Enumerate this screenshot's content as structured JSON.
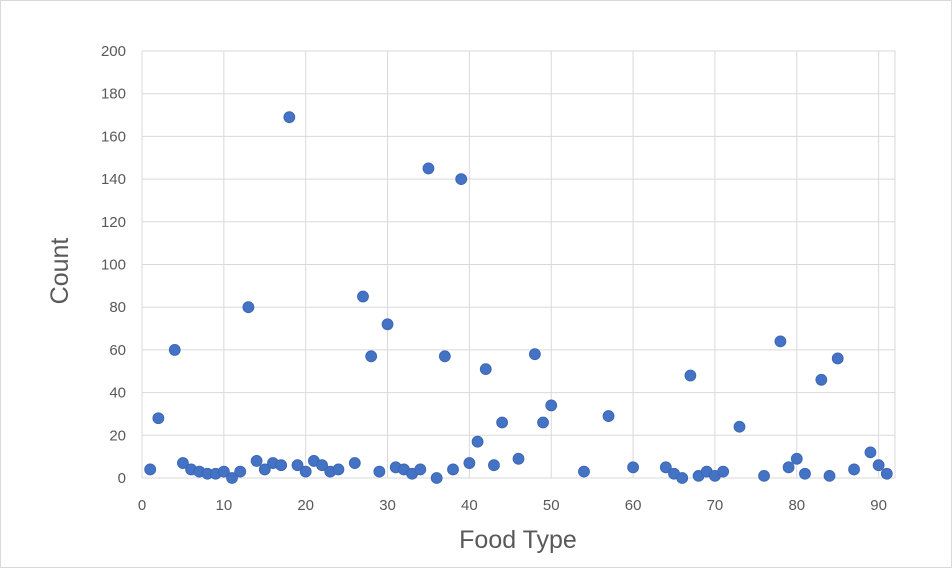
{
  "chart_data": {
    "type": "scatter",
    "title": "",
    "xlabel": "Food Type",
    "ylabel": "Count",
    "xlim": [
      0,
      92
    ],
    "ylim": [
      0,
      200
    ],
    "xticks": [
      0,
      10,
      20,
      30,
      40,
      50,
      60,
      70,
      80,
      90
    ],
    "yticks": [
      0,
      20,
      40,
      60,
      80,
      100,
      120,
      140,
      160,
      180,
      200
    ],
    "grid": true,
    "legend": "none",
    "marker_color": "#4472C4",
    "series": [
      {
        "points": [
          [
            1,
            4
          ],
          [
            2,
            28
          ],
          [
            4,
            60
          ],
          [
            5,
            7
          ],
          [
            6,
            4
          ],
          [
            7,
            3
          ],
          [
            8,
            2
          ],
          [
            9,
            2
          ],
          [
            10,
            3
          ],
          [
            11,
            0
          ],
          [
            12,
            3
          ],
          [
            13,
            80
          ],
          [
            14,
            8
          ],
          [
            15,
            4
          ],
          [
            16,
            7
          ],
          [
            17,
            6
          ],
          [
            18,
            169
          ],
          [
            19,
            6
          ],
          [
            20,
            3
          ],
          [
            21,
            8
          ],
          [
            22,
            6
          ],
          [
            23,
            3
          ],
          [
            24,
            4
          ],
          [
            26,
            7
          ],
          [
            27,
            85
          ],
          [
            28,
            57
          ],
          [
            29,
            3
          ],
          [
            30,
            72
          ],
          [
            31,
            5
          ],
          [
            32,
            4
          ],
          [
            33,
            2
          ],
          [
            34,
            4
          ],
          [
            35,
            145
          ],
          [
            36,
            0
          ],
          [
            37,
            57
          ],
          [
            38,
            4
          ],
          [
            39,
            140
          ],
          [
            40,
            7
          ],
          [
            41,
            17
          ],
          [
            42,
            51
          ],
          [
            43,
            6
          ],
          [
            44,
            26
          ],
          [
            46,
            9
          ],
          [
            48,
            58
          ],
          [
            49,
            26
          ],
          [
            50,
            34
          ],
          [
            54,
            3
          ],
          [
            57,
            29
          ],
          [
            60,
            5
          ],
          [
            64,
            5
          ],
          [
            65,
            2
          ],
          [
            66,
            0
          ],
          [
            67,
            48
          ],
          [
            68,
            1
          ],
          [
            69,
            3
          ],
          [
            70,
            1
          ],
          [
            71,
            3
          ],
          [
            73,
            24
          ],
          [
            76,
            1
          ],
          [
            78,
            64
          ],
          [
            79,
            5
          ],
          [
            80,
            9
          ],
          [
            81,
            2
          ],
          [
            83,
            46
          ],
          [
            84,
            1
          ],
          [
            85,
            56
          ],
          [
            87,
            4
          ],
          [
            89,
            12
          ],
          [
            90,
            6
          ],
          [
            91,
            2
          ]
        ]
      }
    ]
  }
}
